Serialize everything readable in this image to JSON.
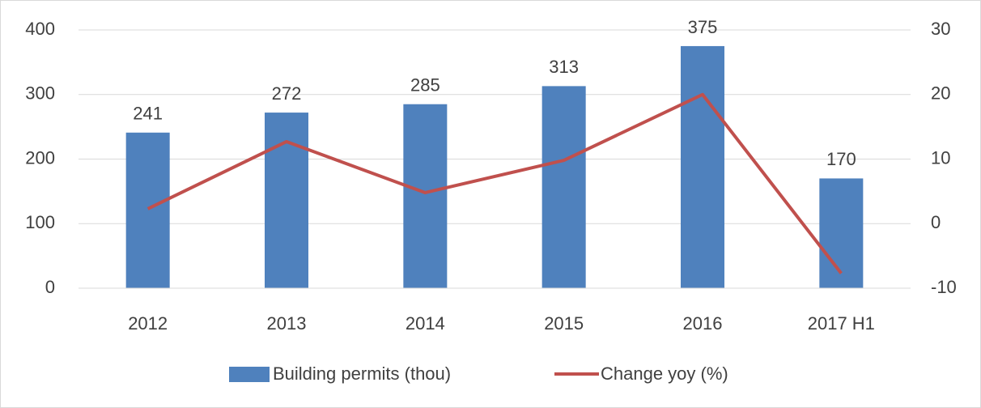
{
  "chart_data": {
    "type": "bar",
    "categories": [
      "2012",
      "2013",
      "2014",
      "2015",
      "2016",
      "2017 H1"
    ],
    "series": [
      {
        "name": "Building permits (thou)",
        "type": "bar",
        "color": "#4f81bd",
        "values": [
          241,
          272,
          285,
          313,
          375,
          170
        ]
      },
      {
        "name": "Change yoy (%)",
        "type": "line",
        "axis": "y2",
        "color": "#c0504d",
        "values": [
          2.3,
          12.7,
          4.8,
          9.8,
          20,
          -7.7
        ]
      }
    ],
    "ylim": [
      0,
      400
    ],
    "yticks": [
      0,
      100,
      200,
      300,
      400
    ],
    "y2lim": [
      -10,
      30
    ],
    "y2ticks": [
      -10,
      0,
      10,
      20,
      30
    ],
    "grid": true,
    "legend": "bottom"
  }
}
